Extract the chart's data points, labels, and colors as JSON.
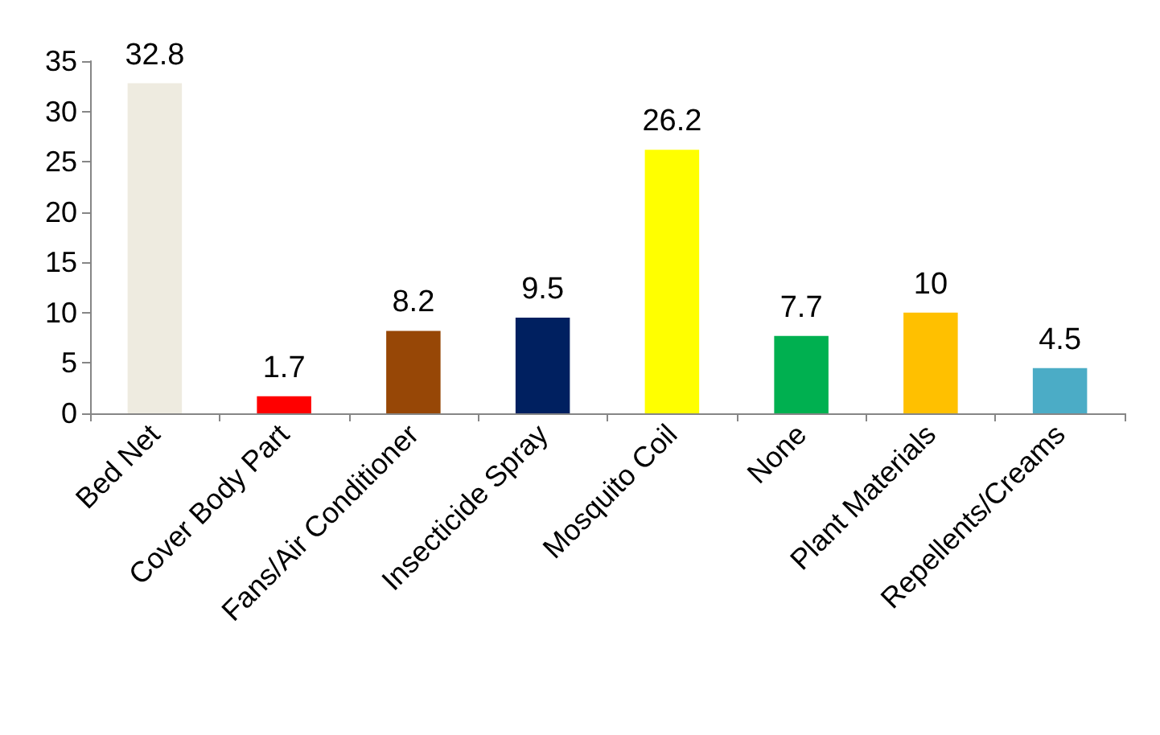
{
  "chart_data": {
    "type": "bar",
    "categories": [
      "Bed Net",
      "Cover Body Part",
      "Fans/Air Conditioner",
      "Insecticide Spray",
      "Mosquito Coil",
      "None",
      "Plant Materials",
      "Repellents/Creams"
    ],
    "values": [
      32.8,
      1.7,
      8.2,
      9.5,
      26.2,
      7.7,
      10,
      4.5
    ],
    "colors": [
      "#eeebe0",
      "#ff0000",
      "#974706",
      "#002060",
      "#ffff00",
      "#00b050",
      "#ffc000",
      "#4bacc6"
    ],
    "ylim": [
      0,
      35
    ],
    "yticks": [
      0,
      5,
      10,
      15,
      20,
      25,
      30,
      35
    ],
    "grid": false,
    "data_labels": true
  }
}
